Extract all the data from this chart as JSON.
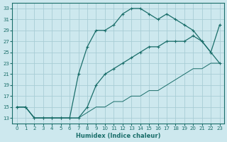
{
  "xlabel": "Humidex (Indice chaleur)",
  "bg_color": "#cde8ee",
  "grid_color": "#a8cdd5",
  "line_color": "#1a6e6a",
  "xlim": [
    -0.5,
    23.5
  ],
  "ylim": [
    12,
    34
  ],
  "yticks": [
    13,
    15,
    17,
    19,
    21,
    23,
    25,
    27,
    29,
    31,
    33
  ],
  "xticks": [
    0,
    1,
    2,
    3,
    4,
    5,
    6,
    7,
    8,
    9,
    10,
    11,
    12,
    13,
    14,
    15,
    16,
    17,
    18,
    19,
    20,
    21,
    22,
    23
  ],
  "curve1_x": [
    0,
    1,
    2,
    3,
    4,
    5,
    6,
    7,
    8,
    9,
    10,
    11,
    12,
    13,
    14,
    15,
    16,
    17,
    18,
    19,
    20,
    21,
    22,
    23
  ],
  "curve1_y": [
    15,
    15,
    13,
    13,
    13,
    13,
    13,
    21,
    26,
    29,
    29,
    30,
    32,
    33,
    33,
    32,
    31,
    32,
    31,
    30,
    29,
    27,
    25,
    30
  ],
  "curve2_x": [
    0,
    1,
    2,
    3,
    4,
    5,
    6,
    7,
    8,
    9,
    10,
    11,
    12,
    13,
    14,
    15,
    16,
    17,
    18,
    19,
    20,
    21,
    22,
    23
  ],
  "curve2_y": [
    15,
    15,
    13,
    13,
    13,
    13,
    13,
    13,
    15,
    19,
    21,
    22,
    23,
    24,
    25,
    26,
    26,
    27,
    27,
    27,
    28,
    27,
    25,
    23
  ],
  "curve3_x": [
    0,
    1,
    2,
    3,
    4,
    5,
    6,
    7,
    8,
    9,
    10,
    11,
    12,
    13,
    14,
    15,
    16,
    17,
    18,
    19,
    20,
    21,
    22,
    23
  ],
  "curve3_y": [
    15,
    15,
    13,
    13,
    13,
    13,
    13,
    13,
    14,
    15,
    15,
    16,
    16,
    17,
    17,
    18,
    18,
    19,
    20,
    21,
    22,
    22,
    23,
    23
  ]
}
